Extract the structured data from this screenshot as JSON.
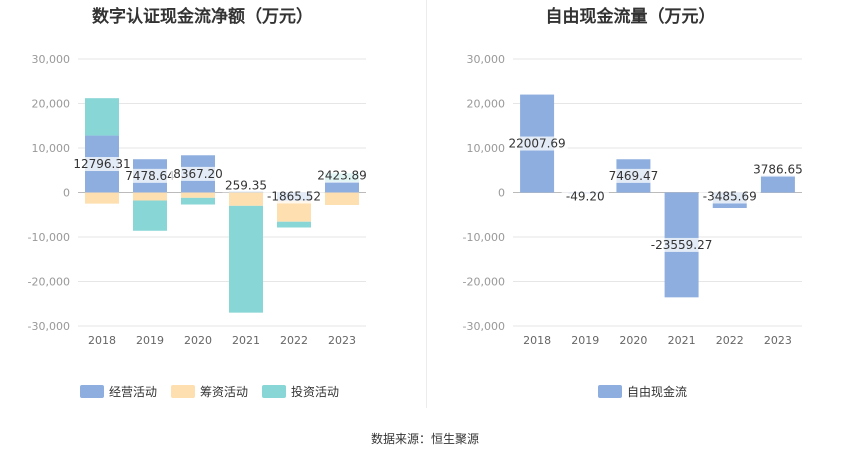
{
  "source_label": "数据来源：恒生聚源",
  "chart_data": [
    {
      "type": "bar",
      "stacked": true,
      "title": "数字认证现金流净额（万元）",
      "categories": [
        "2018",
        "2019",
        "2020",
        "2021",
        "2022",
        "2023"
      ],
      "ylim": [
        -30000,
        30000
      ],
      "yticks": [
        "30,000",
        "20,000",
        "10,000",
        "0",
        "-10,000",
        "-20,000",
        "-30,000"
      ],
      "ytick_values": [
        30000,
        20000,
        10000,
        0,
        -10000,
        -20000,
        -30000
      ],
      "series": [
        {
          "name": "经营活动",
          "color": "#8eaedf",
          "values": [
            12796.31,
            7478.64,
            8367.2,
            259.35,
            -1865.52,
            2423.89
          ]
        },
        {
          "name": "筹资活动",
          "color": "#fddfb0",
          "values": [
            -2500,
            -1800,
            -1200,
            -3000,
            -4700,
            -2800
          ]
        },
        {
          "name": "投资活动",
          "color": "#89d6d6",
          "values": [
            8400,
            -6800,
            -1500,
            -24000,
            -1300,
            1900
          ]
        }
      ],
      "data_labels": [
        "12796.31",
        "7478.64",
        "8367.20",
        "259.35",
        "-1865.52",
        "2423.89"
      ],
      "legend_position": "bottom",
      "grid": true
    },
    {
      "type": "bar",
      "title": "自由现金流量（万元）",
      "categories": [
        "2018",
        "2019",
        "2020",
        "2021",
        "2022",
        "2023"
      ],
      "ylim": [
        -30000,
        30000
      ],
      "yticks": [
        "30,000",
        "20,000",
        "10,000",
        "0",
        "-10,000",
        "-20,000",
        "-30,000"
      ],
      "ytick_values": [
        30000,
        20000,
        10000,
        0,
        -10000,
        -20000,
        -30000
      ],
      "series": [
        {
          "name": "自由现金流",
          "color": "#8eaedf",
          "values": [
            22007.69,
            -49.2,
            7469.47,
            -23559.27,
            -3485.69,
            3786.65
          ]
        }
      ],
      "data_labels": [
        "22007.69",
        "-49.20",
        "7469.47",
        "-23559.27",
        "-3485.69",
        "3786.65"
      ],
      "legend_position": "bottom",
      "grid": true
    }
  ]
}
